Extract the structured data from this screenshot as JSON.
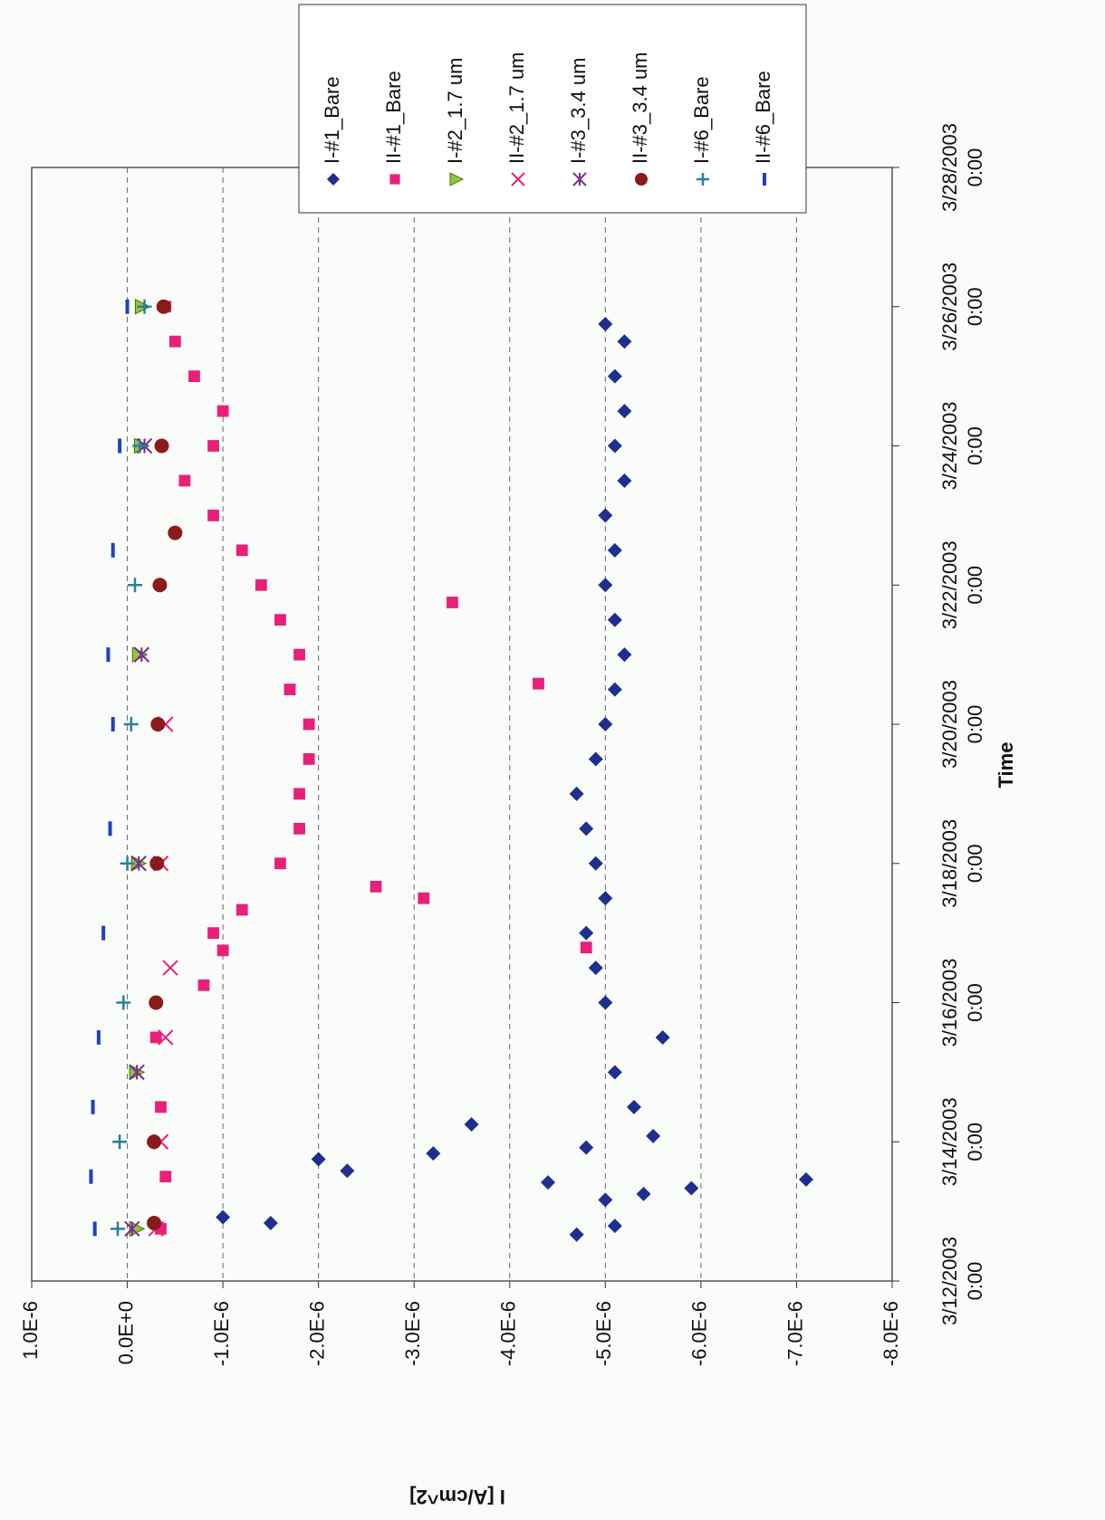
{
  "chart_data": {
    "type": "scatter",
    "x_label": "Time",
    "y_label": "I [A/cm^2]",
    "xlim": [
      "3/12/2003 0:00",
      "3/28/2003 0:00"
    ],
    "xticks": [
      "3/12/2003 0:00",
      "3/14/2003 0:00",
      "3/16/2003 0:00",
      "3/18/2003 0:00",
      "3/20/2003 0:00",
      "3/22/2003 0:00",
      "3/24/2003 0:00",
      "3/26/2003 0:00",
      "3/28/2003 0:00"
    ],
    "ylim": [
      -8e-06,
      1e-06
    ],
    "yticks": [
      {
        "value": 1e-06,
        "label": "1.0E-6"
      },
      {
        "value": 0,
        "label": "0.0E+0"
      },
      {
        "value": -1e-06,
        "label": "-1.0E-6"
      },
      {
        "value": -2e-06,
        "label": "-2.0E-6"
      },
      {
        "value": -3e-06,
        "label": "-3.0E-6"
      },
      {
        "value": -4e-06,
        "label": "-4.0E-6"
      },
      {
        "value": -5e-06,
        "label": "-5.0E-6"
      },
      {
        "value": -6e-06,
        "label": "-6.0E-6"
      },
      {
        "value": -7e-06,
        "label": "-7.0E-6"
      },
      {
        "value": -8e-06,
        "label": "-8.0E-6"
      }
    ],
    "grid": true,
    "legend": "upper right",
    "series": [
      {
        "name": "I-#1_Bare",
        "color": "#1f2f8f",
        "marker": "diamond",
        "x": [
          "3/12/2003 16:00",
          "3/12/2003 19:00",
          "3/12/2003 20:00",
          "3/12/2003 22:00",
          "3/13/2003 4:00",
          "3/13/2003 6:00",
          "3/13/2003 8:00",
          "3/13/2003 10:00",
          "3/13/2003 11:00",
          "3/13/2003 14:00",
          "3/13/2003 18:00",
          "3/13/2003 20:00",
          "3/13/2003 22:00",
          "3/14/2003 2:00",
          "3/14/2003 6:00",
          "3/14/2003 12:00",
          "3/15/2003 0:00",
          "3/15/2003 12:00",
          "3/16/2003 0:00",
          "3/16/2003 12:00",
          "3/17/2003 0:00",
          "3/17/2003 12:00",
          "3/18/2003 0:00",
          "3/18/2003 12:00",
          "3/19/2003 0:00",
          "3/19/2003 12:00",
          "3/20/2003 0:00",
          "3/20/2003 12:00",
          "3/21/2003 0:00",
          "3/21/2003 12:00",
          "3/22/2003 0:00",
          "3/22/2003 12:00",
          "3/23/2003 0:00",
          "3/23/2003 12:00",
          "3/24/2003 0:00",
          "3/24/2003 12:00",
          "3/25/2003 0:00",
          "3/25/2003 12:00",
          "3/25/2003 18:00"
        ],
        "values": [
          -4.7e-06,
          -5.1e-06,
          -1.5e-06,
          -1e-06,
          -5e-06,
          -5.4e-06,
          -5.9e-06,
          -4.4e-06,
          -7.1e-06,
          -2.3e-06,
          -2e-06,
          -3.2e-06,
          -4.8e-06,
          -5.5e-06,
          -3.6e-06,
          -5.3e-06,
          -5.1e-06,
          -5.6e-06,
          -5e-06,
          -4.9e-06,
          -4.8e-06,
          -5e-06,
          -4.9e-06,
          -4.8e-06,
          -4.7e-06,
          -4.9e-06,
          -5e-06,
          -5.1e-06,
          -5.2e-06,
          -5.1e-06,
          -5e-06,
          -5.1e-06,
          -5e-06,
          -5.2e-06,
          -5.1e-06,
          -5.2e-06,
          -5.1e-06,
          -5.2e-06,
          -5e-06
        ]
      },
      {
        "name": "II-#1_Bare",
        "color": "#e8207a",
        "marker": "square",
        "x": [
          "3/12/2003 18:00",
          "3/13/2003 12:00",
          "3/14/2003 12:00",
          "3/15/2003 12:00",
          "3/16/2003 6:00",
          "3/16/2003 18:00",
          "3/16/2003 19:00",
          "3/17/2003 0:00",
          "3/17/2003 8:00",
          "3/17/2003 12:00",
          "3/17/2003 16:00",
          "3/18/2003 0:00",
          "3/18/2003 12:00",
          "3/19/2003 0:00",
          "3/19/2003 12:00",
          "3/20/2003 0:00",
          "3/20/2003 12:00",
          "3/20/2003 14:00",
          "3/21/2003 0:00",
          "3/21/2003 12:00",
          "3/21/2003 18:00",
          "3/22/2003 0:00",
          "3/22/2003 12:00",
          "3/23/2003 0:00",
          "3/23/2003 12:00",
          "3/24/2003 0:00",
          "3/24/2003 12:00",
          "3/25/2003 0:00",
          "3/25/2003 12:00",
          "3/26/2003 0:00"
        ],
        "values": [
          -3.5e-07,
          -4e-07,
          -3.5e-07,
          -3e-07,
          -8e-07,
          -1e-06,
          -4.8e-06,
          -9e-07,
          -1.2e-06,
          -3.1e-06,
          -2.6e-06,
          -1.6e-06,
          -1.8e-06,
          -1.8e-06,
          -1.9e-06,
          -1.9e-06,
          -1.7e-06,
          -4.3e-06,
          -1.8e-06,
          -1.6e-06,
          -3.4e-06,
          -1.4e-06,
          -1.2e-06,
          -9e-07,
          -6e-07,
          -9e-07,
          -1e-06,
          -7e-07,
          -5e-07,
          -4e-07
        ]
      },
      {
        "name": "I-#2_1.7 um",
        "color": "#8dc63f",
        "marker": "triangle",
        "x": [
          "3/12/2003 18:00",
          "3/15/2003 0:00",
          "3/18/2003 0:00",
          "3/21/2003 0:00",
          "3/24/2003 0:00",
          "3/26/2003 0:00"
        ],
        "values": [
          -1e-07,
          -1e-07,
          -1.2e-07,
          -1.3e-07,
          -1.5e-07,
          -1.6e-07
        ]
      },
      {
        "name": "II-#2_1.7 um",
        "color": "#e8207a",
        "marker": "x",
        "x": [
          "3/12/2003 18:00",
          "3/14/2003 0:00",
          "3/15/2003 12:00",
          "3/16/2003 12:00",
          "3/18/2003 0:00",
          "3/20/2003 0:00"
        ],
        "values": [
          -3e-07,
          -3.5e-07,
          -4e-07,
          -4.5e-07,
          -3.5e-07,
          -4e-07
        ]
      },
      {
        "name": "I-#3_3.4 um",
        "color": "#7b2b8f",
        "marker": "star",
        "x": [
          "3/12/2003 18:00",
          "3/15/2003 0:00",
          "3/18/2003 0:00",
          "3/21/2003 0:00",
          "3/24/2003 0:00"
        ],
        "values": [
          -5e-08,
          -1e-07,
          -1.2e-07,
          -1.5e-07,
          -1.8e-07
        ]
      },
      {
        "name": "II-#3_3.4 um",
        "color": "#8b1a1a",
        "marker": "circle",
        "x": [
          "3/12/2003 20:00",
          "3/14/2003 0:00",
          "3/16/2003 0:00",
          "3/18/2003 0:00",
          "3/20/2003 0:00",
          "3/22/2003 0:00",
          "3/22/2003 18:00",
          "3/24/2003 0:00",
          "3/26/2003 0:00"
        ],
        "values": [
          -2.8e-07,
          -2.8e-07,
          -3e-07,
          -3.1e-07,
          -3.2e-07,
          -3.4e-07,
          -5e-07,
          -3.6e-07,
          -3.8e-07
        ]
      },
      {
        "name": "I-#6_Bare",
        "color": "#2a7f9f",
        "marker": "plus",
        "x": [
          "3/12/2003 18:00",
          "3/14/2003 0:00",
          "3/16/2003 0:00",
          "3/18/2003 0:00",
          "3/20/2003 0:00",
          "3/22/2003 0:00",
          "3/24/2003 0:00",
          "3/26/2003 0:00"
        ],
        "values": [
          1e-07,
          8e-08,
          4e-08,
          0.0,
          -4e-08,
          -8e-08,
          -1.3e-07,
          -1.8e-07
        ]
      },
      {
        "name": "II-#6_Bare",
        "color": "#2040c0",
        "marker": "dash",
        "x": [
          "3/12/2003 18:00",
          "3/13/2003 12:00",
          "3/14/2003 12:00",
          "3/15/2003 12:00",
          "3/17/2003 0:00",
          "3/18/2003 12:00",
          "3/20/2003 0:00",
          "3/21/2003 0:00",
          "3/22/2003 12:00",
          "3/24/2003 0:00",
          "3/26/2003 0:00"
        ],
        "values": [
          3.4e-07,
          3.8e-07,
          3.6e-07,
          3e-07,
          2.5e-07,
          1.8e-07,
          1.5e-07,
          2e-07,
          1.5e-07,
          8e-08,
          0.0
        ]
      }
    ]
  }
}
